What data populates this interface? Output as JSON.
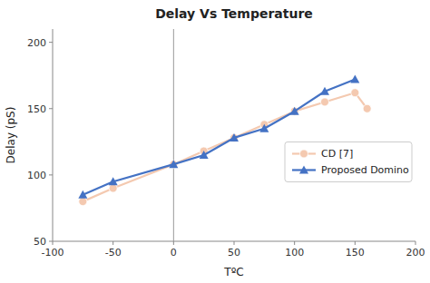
{
  "chart_data": {
    "type": "line",
    "title": "Delay Vs Temperature",
    "xlabel": "TºC",
    "ylabel": "Delay (pS)",
    "xlim": [
      -100,
      200
    ],
    "ylim": [
      50,
      210
    ],
    "xticks": [
      -100,
      -50,
      0,
      50,
      100,
      150,
      200
    ],
    "yticks": [
      50,
      100,
      150,
      200
    ],
    "vline_x": 0,
    "grid": false,
    "legend": "right",
    "series": [
      {
        "name": "CD [7]",
        "color": "#F4C9B0",
        "marker": "circle",
        "x": [
          -75,
          -50,
          0,
          25,
          50,
          75,
          100,
          125,
          150,
          160
        ],
        "values": [
          80,
          90,
          108,
          118,
          128,
          138,
          148,
          155,
          162,
          150
        ]
      },
      {
        "name": "Proposed Domino",
        "color": "#4472C4",
        "marker": "triangle",
        "x": [
          -75,
          -50,
          0,
          25,
          50,
          75,
          100,
          125,
          150
        ],
        "values": [
          85,
          95,
          108,
          115,
          128,
          135,
          148,
          163,
          172
        ]
      }
    ]
  }
}
